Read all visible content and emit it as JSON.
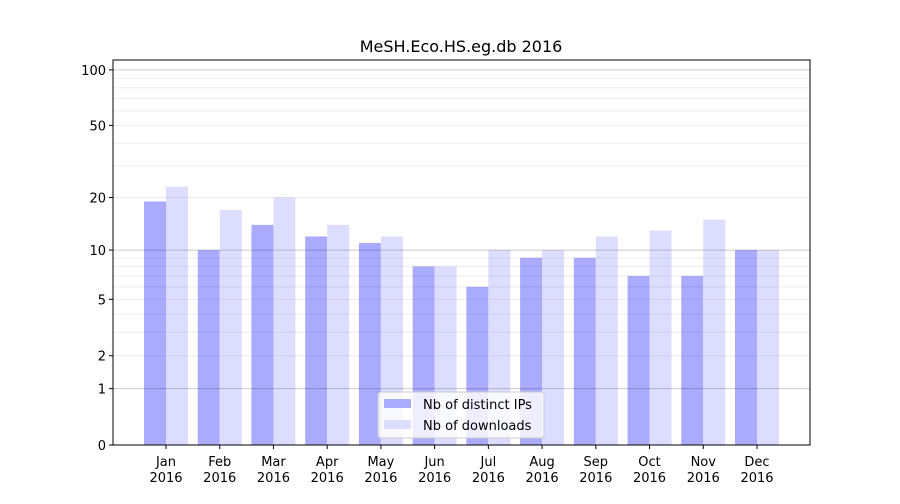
{
  "chart_data": {
    "type": "bar",
    "title": "MeSH.Eco.HS.eg.db 2016",
    "xlabel": "",
    "ylabel": "",
    "yscale": "log(1+y)",
    "ylim": [
      0,
      113
    ],
    "yticks": [
      0,
      1,
      2,
      5,
      10,
      20,
      50,
      100
    ],
    "ytick_labels": [
      "0",
      "1",
      "2",
      "5",
      "10",
      "20",
      "50",
      "100"
    ],
    "grid": "horizontal major and minor",
    "categories": [
      "Jan\n2016",
      "Feb\n2016",
      "Mar\n2016",
      "Apr\n2016",
      "May\n2016",
      "Jun\n2016",
      "Jul\n2016",
      "Aug\n2016",
      "Sep\n2016",
      "Oct\n2016",
      "Nov\n2016",
      "Dec\n2016"
    ],
    "category_lines": [
      [
        "Jan",
        "2016"
      ],
      [
        "Feb",
        "2016"
      ],
      [
        "Mar",
        "2016"
      ],
      [
        "Apr",
        "2016"
      ],
      [
        "May",
        "2016"
      ],
      [
        "Jun",
        "2016"
      ],
      [
        "Jul",
        "2016"
      ],
      [
        "Aug",
        "2016"
      ],
      [
        "Sep",
        "2016"
      ],
      [
        "Oct",
        "2016"
      ],
      [
        "Nov",
        "2016"
      ],
      [
        "Dec",
        "2016"
      ]
    ],
    "series": [
      {
        "name": "Nb of distinct IPs",
        "color": "#aaaaff",
        "values": [
          19,
          10,
          14,
          12,
          11,
          8,
          6,
          9,
          9,
          7,
          7,
          10
        ]
      },
      {
        "name": "Nb of downloads",
        "color": "#ddddff",
        "values": [
          23,
          17,
          20,
          14,
          12,
          8,
          10,
          10,
          12,
          13,
          15,
          10
        ]
      }
    ],
    "legend": "bottom-center"
  }
}
